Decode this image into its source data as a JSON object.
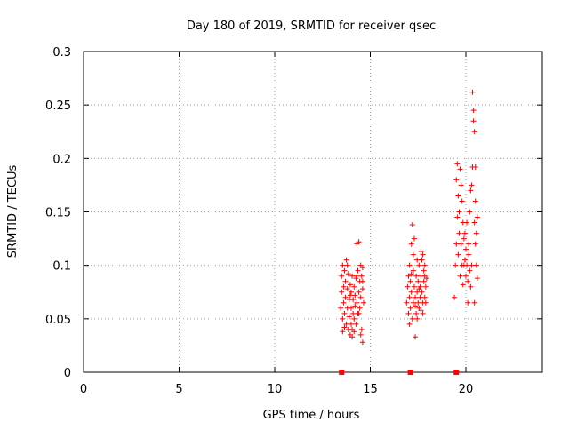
{
  "chart_data": {
    "type": "scatter",
    "title": "Day 180 of 2019, SRMTID for receiver qsec",
    "xlabel": "GPS time / hours",
    "ylabel": "SRMTID / TECUs",
    "xlim": [
      0,
      24
    ],
    "ylim": [
      0,
      0.3
    ],
    "xticks": [
      0,
      5,
      10,
      15,
      20
    ],
    "yticks": [
      0,
      0.05,
      0.1,
      0.15,
      0.2,
      0.25,
      0.3
    ],
    "grid": true,
    "marker": "plus",
    "color": "#ff0000",
    "zero_markers_x": [
      13.5,
      17.1,
      19.5
    ],
    "series": [
      {
        "name": "SRMTID",
        "points": [
          [
            13.45,
            0.06
          ],
          [
            13.5,
            0.09
          ],
          [
            13.5,
            0.075
          ],
          [
            13.55,
            0.1
          ],
          [
            13.55,
            0.05
          ],
          [
            13.6,
            0.065
          ],
          [
            13.6,
            0.08
          ],
          [
            13.65,
            0.095
          ],
          [
            13.65,
            0.055
          ],
          [
            13.7,
            0.07
          ],
          [
            13.7,
            0.085
          ],
          [
            13.75,
            0.045
          ],
          [
            13.75,
            0.105
          ],
          [
            13.8,
            0.06
          ],
          [
            13.8,
            0.078
          ],
          [
            13.85,
            0.04
          ],
          [
            13.85,
            0.092
          ],
          [
            13.9,
            0.068
          ],
          [
            13.9,
            0.052
          ],
          [
            13.95,
            0.035
          ],
          [
            13.95,
            0.082
          ],
          [
            14.0,
            0.045
          ],
          [
            14.0,
            0.075
          ],
          [
            14.0,
            0.06
          ],
          [
            14.05,
            0.09
          ],
          [
            14.05,
            0.04
          ],
          [
            14.1,
            0.068
          ],
          [
            14.1,
            0.055
          ],
          [
            14.15,
            0.08
          ],
          [
            14.15,
            0.05
          ],
          [
            14.2,
            0.062
          ],
          [
            14.2,
            0.072
          ],
          [
            14.25,
            0.088
          ],
          [
            14.25,
            0.045
          ],
          [
            14.3,
            0.065
          ],
          [
            14.3,
            0.12
          ],
          [
            14.35,
            0.055
          ],
          [
            14.35,
            0.095
          ],
          [
            14.4,
            0.075
          ],
          [
            14.4,
            0.122
          ],
          [
            14.45,
            0.085
          ],
          [
            14.45,
            0.06
          ],
          [
            14.5,
            0.07
          ],
          [
            14.5,
            0.035
          ],
          [
            14.55,
            0.09
          ],
          [
            14.55,
            0.04
          ],
          [
            14.6,
            0.078
          ],
          [
            14.6,
            0.028
          ],
          [
            14.6,
            0.098
          ],
          [
            14.65,
            0.065
          ],
          [
            13.55,
            0.038
          ],
          [
            13.65,
            0.042
          ],
          [
            13.8,
            0.1
          ],
          [
            14.05,
            0.033
          ],
          [
            14.3,
            0.09
          ],
          [
            14.5,
            0.1
          ],
          [
            13.95,
            0.072
          ],
          [
            14.15,
            0.038
          ],
          [
            14.4,
            0.055
          ],
          [
            14.6,
            0.085
          ],
          [
            16.9,
            0.065
          ],
          [
            16.95,
            0.08
          ],
          [
            17.0,
            0.055
          ],
          [
            17.0,
            0.09
          ],
          [
            17.05,
            0.07
          ],
          [
            17.05,
            0.1
          ],
          [
            17.1,
            0.06
          ],
          [
            17.1,
            0.085
          ],
          [
            17.15,
            0.075
          ],
          [
            17.15,
            0.12
          ],
          [
            17.2,
            0.138
          ],
          [
            17.2,
            0.05
          ],
          [
            17.25,
            0.095
          ],
          [
            17.25,
            0.065
          ],
          [
            17.3,
            0.125
          ],
          [
            17.3,
            0.08
          ],
          [
            17.35,
            0.033
          ],
          [
            17.35,
            0.07
          ],
          [
            17.4,
            0.055
          ],
          [
            17.4,
            0.09
          ],
          [
            17.45,
            0.075
          ],
          [
            17.45,
            0.105
          ],
          [
            17.5,
            0.065
          ],
          [
            17.5,
            0.085
          ],
          [
            17.55,
            0.06
          ],
          [
            17.55,
            0.1
          ],
          [
            17.6,
            0.07
          ],
          [
            17.6,
            0.08
          ],
          [
            17.65,
            0.09
          ],
          [
            17.65,
            0.058
          ],
          [
            17.7,
            0.075
          ],
          [
            17.7,
            0.105
          ],
          [
            17.75,
            0.065
          ],
          [
            17.75,
            0.11
          ],
          [
            17.8,
            0.085
          ],
          [
            17.8,
            0.095
          ],
          [
            17.85,
            0.07
          ],
          [
            17.85,
            0.1
          ],
          [
            17.9,
            0.08
          ],
          [
            17.9,
            0.065
          ],
          [
            17.05,
            0.045
          ],
          [
            17.25,
            0.11
          ],
          [
            17.45,
            0.05
          ],
          [
            17.65,
            0.113
          ],
          [
            17.85,
            0.09
          ],
          [
            17.15,
            0.092
          ],
          [
            17.35,
            0.062
          ],
          [
            17.55,
            0.078
          ],
          [
            17.75,
            0.055
          ],
          [
            17.95,
            0.088
          ],
          [
            19.4,
            0.07
          ],
          [
            19.45,
            0.1
          ],
          [
            19.5,
            0.12
          ],
          [
            19.5,
            0.18
          ],
          [
            19.55,
            0.145
          ],
          [
            19.55,
            0.195
          ],
          [
            19.6,
            0.11
          ],
          [
            19.6,
            0.165
          ],
          [
            19.65,
            0.13
          ],
          [
            19.65,
            0.15
          ],
          [
            19.7,
            0.09
          ],
          [
            19.7,
            0.19
          ],
          [
            19.75,
            0.175
          ],
          [
            19.75,
            0.12
          ],
          [
            19.8,
            0.1
          ],
          [
            19.8,
            0.16
          ],
          [
            19.85,
            0.14
          ],
          [
            19.85,
            0.082
          ],
          [
            19.9,
            0.125
          ],
          [
            19.9,
            0.1
          ],
          [
            19.95,
            0.105
          ],
          [
            19.95,
            0.13
          ],
          [
            20.0,
            0.09
          ],
          [
            20.0,
            0.115
          ],
          [
            20.05,
            0.1
          ],
          [
            20.05,
            0.14
          ],
          [
            20.1,
            0.065
          ],
          [
            20.1,
            0.085
          ],
          [
            20.15,
            0.11
          ],
          [
            20.15,
            0.12
          ],
          [
            20.2,
            0.095
          ],
          [
            20.2,
            0.15
          ],
          [
            20.25,
            0.08
          ],
          [
            20.25,
            0.17
          ],
          [
            20.3,
            0.1
          ],
          [
            20.3,
            0.175
          ],
          [
            20.35,
            0.192
          ],
          [
            20.35,
            0.262
          ],
          [
            20.4,
            0.245
          ],
          [
            20.4,
            0.235
          ],
          [
            20.45,
            0.225
          ],
          [
            20.45,
            0.14
          ],
          [
            20.5,
            0.12
          ],
          [
            20.5,
            0.16
          ],
          [
            20.55,
            0.13
          ],
          [
            20.55,
            0.1
          ],
          [
            20.6,
            0.088
          ],
          [
            20.6,
            0.145
          ],
          [
            20.45,
            0.065
          ],
          [
            20.5,
            0.192
          ]
        ]
      }
    ]
  }
}
